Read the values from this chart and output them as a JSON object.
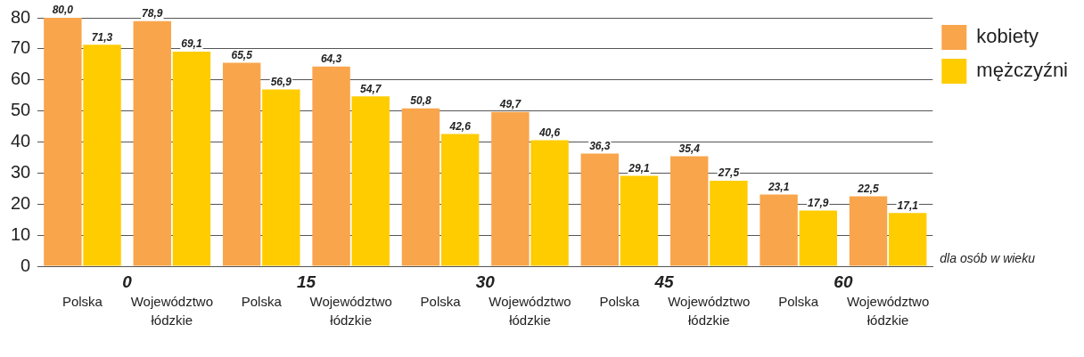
{
  "chart_data": {
    "type": "bar",
    "categories": [
      "Polska",
      "Województwo łódzkie",
      "Polska",
      "Województwo łódzkie",
      "Polska",
      "Województwo łódzkie",
      "Polska",
      "Województwo łódzkie",
      "Polska",
      "Województwo łódzkie"
    ],
    "series": [
      {
        "name": "kobiety",
        "color": "#f9a54b",
        "values": [
          80.0,
          78.9,
          65.5,
          64.3,
          50.8,
          49.7,
          36.3,
          35.4,
          23.1,
          22.5
        ],
        "value_labels": [
          "80,0",
          "78,9",
          "65,5",
          "64,3",
          "50,8",
          "49,7",
          "36,3",
          "35,4",
          "23,1",
          "22,5"
        ]
      },
      {
        "name": "mężczyźni",
        "color": "#ffcc00",
        "values": [
          71.3,
          69.1,
          56.9,
          54.7,
          42.6,
          40.6,
          29.1,
          27.5,
          17.9,
          17.1
        ],
        "value_labels": [
          "71,3",
          "69,1",
          "56,9",
          "54,7",
          "42,6",
          "40,6",
          "29,1",
          "27,5",
          "17,9",
          "17,1"
        ]
      }
    ],
    "annotations": [
      "0",
      "15",
      "30",
      "45",
      "60",
      "dla osób w wieku"
    ],
    "ylim": [
      0,
      80
    ],
    "yticks": [
      0,
      10,
      20,
      30,
      40,
      50,
      60,
      70,
      80
    ],
    "grid": "y",
    "legend": "top right"
  }
}
